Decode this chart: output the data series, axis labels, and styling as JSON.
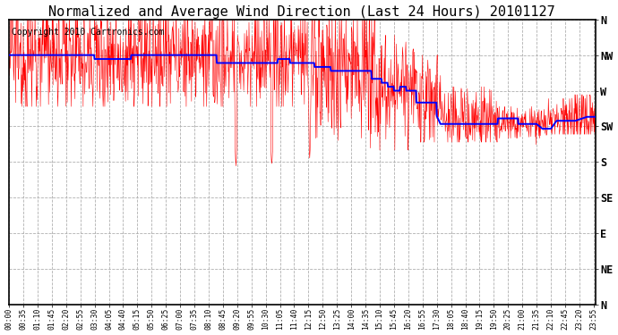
{
  "title": "Normalized and Average Wind Direction (Last 24 Hours) 20101127",
  "copyright": "Copyright 2010 Cartronics.com",
  "ytick_labels": [
    "N",
    "NW",
    "W",
    "SW",
    "S",
    "SE",
    "E",
    "NE",
    "N"
  ],
  "ytick_values": [
    360,
    315,
    270,
    225,
    180,
    135,
    90,
    45,
    0
  ],
  "ylim": [
    0,
    360
  ],
  "plot_bg_color": "#ffffff",
  "grid_color": "#b0b0b0",
  "red_color": "#ff0000",
  "blue_color": "#0000ff",
  "title_fontsize": 11,
  "copyright_fontsize": 7,
  "num_points": 1440,
  "xtick_interval_minutes": 35
}
